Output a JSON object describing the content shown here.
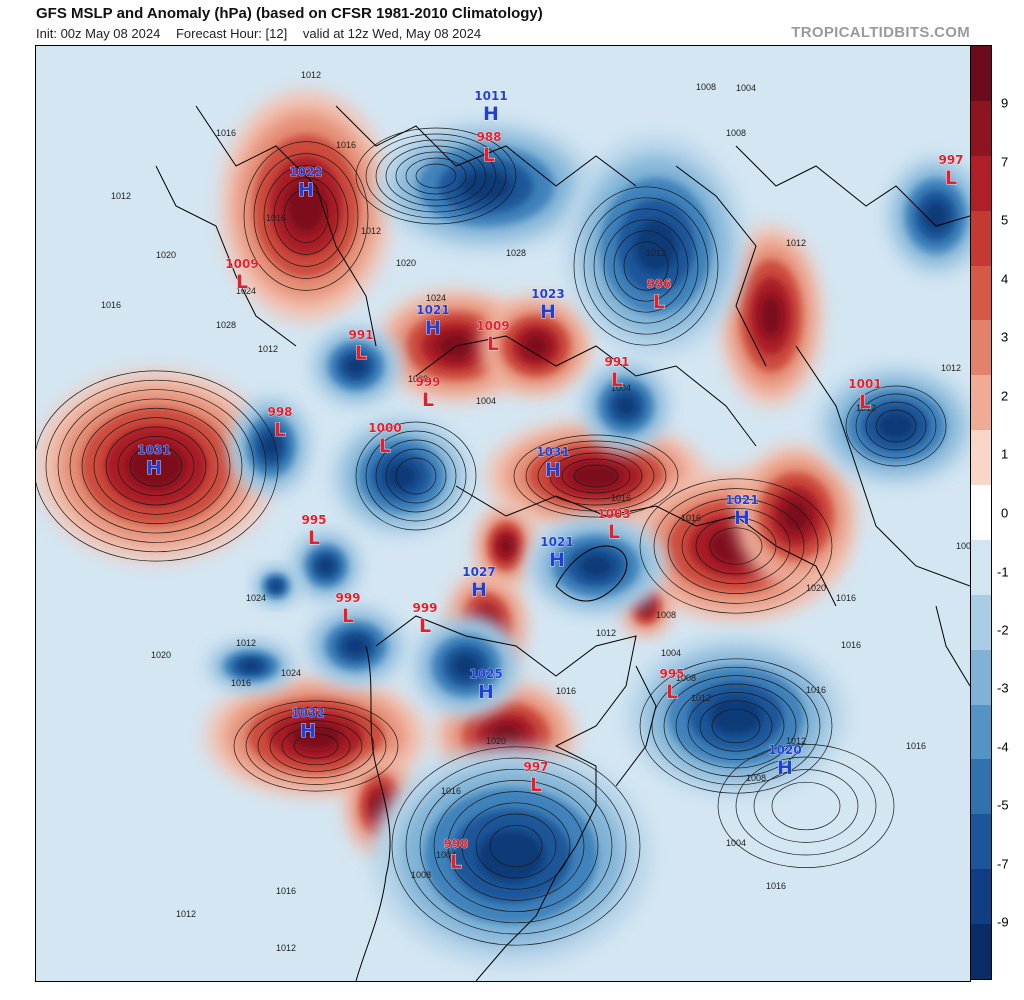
{
  "header": {
    "title": "GFS MSLP and Anomaly (hPa) (based on CFSR 1981-2010 Climatology)",
    "init": "Init: 00z May 08 2024",
    "forecast_hour": "Forecast Hour: [12]",
    "valid": "valid at 12z Wed, May 08 2024",
    "site": "TROPICALTIDBITS.COM"
  },
  "colorbar": {
    "ticks": [
      "9",
      "7",
      "5",
      "4",
      "3",
      "2",
      "1",
      "0",
      "-1",
      "-2",
      "-3",
      "-4",
      "-5",
      "-7",
      "-9"
    ],
    "colors": [
      "#6b0b1e",
      "#8f1422",
      "#ae1f28",
      "#c43a33",
      "#d45a45",
      "#e2826a",
      "#efab94",
      "#f8d6c8",
      "#ffffff",
      "#d3e5f1",
      "#a9cde4",
      "#7fb2d6",
      "#5494c4",
      "#2f72ad",
      "#1a5699",
      "#0f3f82",
      "#0a2c66"
    ]
  },
  "systems": [
    {
      "type": "H",
      "value": "1011"
    },
    {
      "type": "L",
      "value": "988"
    },
    {
      "type": "H",
      "value": "1022"
    },
    {
      "type": "L",
      "value": "1009"
    },
    {
      "type": "H",
      "value": "1021"
    },
    {
      "type": "L",
      "value": "1009"
    },
    {
      "type": "H",
      "value": "1023"
    },
    {
      "type": "L",
      "value": "996"
    },
    {
      "type": "L",
      "value": "991"
    },
    {
      "type": "L",
      "value": "991"
    },
    {
      "type": "L",
      "value": "999"
    },
    {
      "type": "L",
      "value": "998"
    },
    {
      "type": "L",
      "value": "1000"
    },
    {
      "type": "H",
      "value": "1031"
    },
    {
      "type": "H",
      "value": "1031"
    },
    {
      "type": "L",
      "value": "995"
    },
    {
      "type": "L",
      "value": "1003"
    },
    {
      "type": "H",
      "value": "1021"
    },
    {
      "type": "H",
      "value": "1027"
    },
    {
      "type": "L",
      "value": "999"
    },
    {
      "type": "L",
      "value": "999"
    },
    {
      "type": "H",
      "value": "1021"
    },
    {
      "type": "L",
      "value": "997"
    },
    {
      "type": "L",
      "value": "1001"
    },
    {
      "type": "H",
      "value": "1025"
    },
    {
      "type": "L",
      "value": "995"
    },
    {
      "type": "H",
      "value": "1032"
    },
    {
      "type": "L",
      "value": "997"
    },
    {
      "type": "H",
      "value": "1020"
    },
    {
      "type": "L",
      "value": "998"
    }
  ],
  "isobar_labels": [
    "1012",
    "1016",
    "1016",
    "1012",
    "1020",
    "1024",
    "1028",
    "1012",
    "1016",
    "1020",
    "1024",
    "1028",
    "1016",
    "1012",
    "1008",
    "1004",
    "1004",
    "1008",
    "1004",
    "1008",
    "1012",
    "1012",
    "1016",
    "1016",
    "1008",
    "1012",
    "1016",
    "1020",
    "1016",
    "1004",
    "1008",
    "1012",
    "1016",
    "1012",
    "1016",
    "1020",
    "1024",
    "1020",
    "1016",
    "1016",
    "1012",
    "1008",
    "1004",
    "1016",
    "1008",
    "1012",
    "1012",
    "1016",
    "1012",
    "1004",
    "1008",
    "1016",
    "1012",
    "1024"
  ]
}
